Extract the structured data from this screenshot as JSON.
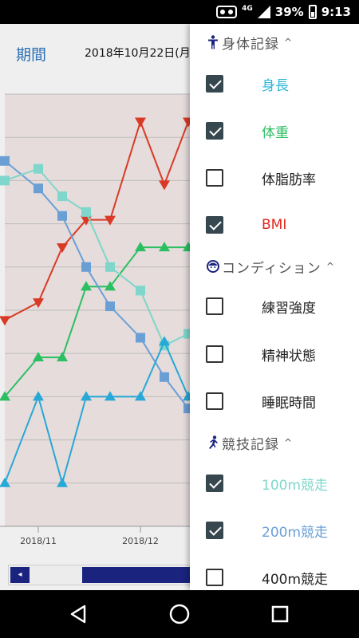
{
  "status_bar": {
    "network": "4G",
    "battery": "39%",
    "time": "9:13",
    "icons": [
      "vr-icon",
      "signal-icon",
      "battery-icon"
    ]
  },
  "header": {
    "period_label": "期間",
    "date_label": "2018年10月22日(月"
  },
  "chart_data": {
    "type": "line",
    "x_labels": [
      "2018/11",
      "2018/12"
    ],
    "background": "#e5dcdb",
    "grid": true,
    "series": [
      {
        "marker": "triangle-down",
        "color": "#d93a26",
        "values": [
          5.75,
          6.2,
          7.6,
          8.3,
          8.3,
          10.8,
          9.2,
          10.8
        ]
      },
      {
        "marker": "triangle-up",
        "color": "#2bbf62",
        "values": [
          3.8,
          4.8,
          4.8,
          6.6,
          6.6,
          7.6,
          7.6,
          7.6
        ]
      },
      {
        "marker": "square",
        "color": "#6a9fd6",
        "values": [
          9.8,
          9.1,
          8.4,
          7.1,
          6.1,
          5.3,
          4.3,
          3.5
        ]
      },
      {
        "marker": "square",
        "color": "#7fd6ca",
        "values": [
          9.3,
          9.6,
          8.9,
          8.5,
          7.1,
          6.5,
          5.1,
          5.4
        ]
      },
      {
        "marker": "triangle-up",
        "color": "#27a8d6",
        "values": [
          1.6,
          3.8,
          1.6,
          3.8,
          3.8,
          3.8,
          5.2,
          3.8
        ]
      }
    ]
  },
  "drawer": {
    "sections": [
      {
        "title": "身体記録",
        "icon": "person-standing-icon",
        "items": [
          {
            "label": "身長",
            "checked": true,
            "color": "#29b6d6"
          },
          {
            "label": "体重",
            "checked": true,
            "color": "#2bbf62"
          },
          {
            "label": "体脂肪率",
            "checked": false,
            "color": "#222222"
          },
          {
            "label": "BMI",
            "checked": true,
            "color": "#e02a1e"
          }
        ]
      },
      {
        "title": "コンディション",
        "icon": "face-icon",
        "items": [
          {
            "label": "練習強度",
            "checked": false,
            "color": "#222222"
          },
          {
            "label": "精神状態",
            "checked": false,
            "color": "#222222"
          },
          {
            "label": "睡眠時間",
            "checked": false,
            "color": "#222222"
          }
        ]
      },
      {
        "title": "競技記録",
        "icon": "runner-icon",
        "items": [
          {
            "label": "100m競走",
            "checked": true,
            "color": "#80d8cc"
          },
          {
            "label": "200m競走",
            "checked": true,
            "color": "#6a9fd6"
          },
          {
            "label": "400m競走",
            "checked": false,
            "color": "#222222"
          }
        ]
      }
    ]
  },
  "nav": {
    "icons": [
      "back-icon",
      "home-icon",
      "recent-apps-icon"
    ]
  }
}
